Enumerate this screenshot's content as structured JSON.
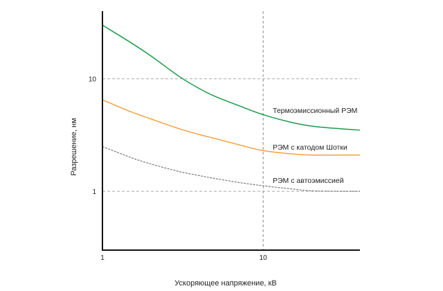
{
  "chart_data": {
    "type": "line",
    "xlabel": "Ускоряющее напряжение, кВ",
    "ylabel": "Разрешение, нм",
    "x_scale": "log",
    "y_scale": "log",
    "xlim": [
      1,
      40
    ],
    "ylim": [
      0.3,
      40
    ],
    "x_ticks": [
      {
        "value": 1,
        "label": "1"
      },
      {
        "value": 10,
        "label": "10"
      }
    ],
    "y_ticks": [
      {
        "value": 1,
        "label": "1"
      },
      {
        "value": 10,
        "label": "10"
      }
    ],
    "reference_lines": {
      "x": [
        10
      ],
      "y": [
        1,
        10
      ]
    },
    "grid": false,
    "series": [
      {
        "name": "Термоэмиссионный РЭМ",
        "color": "#1a9a4a",
        "x": [
          1,
          1.5,
          2,
          3,
          4,
          5,
          7,
          10,
          15,
          20,
          30,
          40
        ],
        "y": [
          30,
          21,
          16,
          10.5,
          8.2,
          7,
          5.8,
          4.8,
          4.1,
          3.8,
          3.6,
          3.5
        ]
      },
      {
        "name": "РЭМ с катодом Шотки",
        "color": "#f5a040",
        "x": [
          1,
          1.5,
          2,
          3,
          4,
          5,
          7,
          10,
          15,
          20,
          30,
          40
        ],
        "y": [
          6.5,
          5.1,
          4.4,
          3.6,
          3.2,
          2.95,
          2.6,
          2.3,
          2.15,
          2.1,
          2.1,
          2.1
        ]
      },
      {
        "name": "РЭМ с автоэмиссией",
        "color": "#777777",
        "x": [
          1,
          1.5,
          2,
          3,
          4,
          5,
          7,
          10,
          15,
          20,
          30,
          40
        ],
        "y": [
          2.5,
          2.0,
          1.75,
          1.5,
          1.38,
          1.3,
          1.2,
          1.12,
          1.05,
          1.01,
          1.0,
          1.0
        ]
      }
    ]
  }
}
